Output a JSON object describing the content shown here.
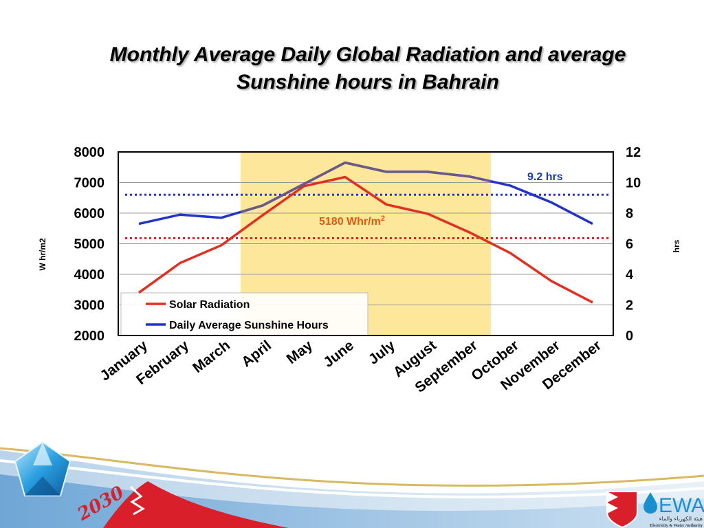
{
  "slide": {
    "title_line1": "Monthly Average Daily Global Radiation and average",
    "title_line2": "Sunshine hours  in Bahrain",
    "logo_text": "EWA",
    "logo_subtitle": "Electricity & Water Authority",
    "logo_arabic": "هيئة الكهرباء والماء",
    "vision_text": "2030"
  },
  "colors": {
    "radiation": "#e03020",
    "sunshine": "#2233cc",
    "highlight": "#fde79a",
    "ref_radiation": "#e02020",
    "ref_sunshine": "#2233cc",
    "annotation_radiation": "#e05a10",
    "annotation_sunshine": "#1a3ab0"
  },
  "chart_data": {
    "type": "line",
    "categories": [
      "January",
      "February",
      "March",
      "April",
      "May",
      "June",
      "July",
      "August",
      "September",
      "October",
      "November",
      "December"
    ],
    "ylabel": "W hr/m2",
    "y2label": "hrs",
    "ylim": [
      2000,
      8000
    ],
    "y2lim": [
      0,
      12
    ],
    "yticks": [
      "8000",
      "7000",
      "6000",
      "5000",
      "4000",
      "3000",
      "2000"
    ],
    "y2ticks": [
      "12",
      "10",
      "8",
      "6",
      "4",
      "2",
      "0"
    ],
    "series": [
      {
        "name": "Solar Radiation",
        "axis": "left",
        "values": [
          3400,
          4370,
          4950,
          5930,
          6880,
          7180,
          6280,
          5980,
          5380,
          4700,
          3780,
          3080
        ]
      },
      {
        "name": "Daily Average Sunshine Hours",
        "axis": "right",
        "values": [
          7.3,
          7.9,
          7.7,
          8.5,
          9.9,
          11.3,
          10.7,
          10.7,
          10.4,
          9.8,
          8.7,
          7.3
        ]
      }
    ],
    "reference_lines": [
      {
        "axis": "left",
        "value": 5180,
        "label": "5180 Whr/m",
        "superscript": "2"
      },
      {
        "axis": "right",
        "value": 9.2,
        "label": "9.2 hrs"
      }
    ],
    "highlight_months": [
      "April",
      "September"
    ],
    "grid": true,
    "legend_position": "bottom-left"
  }
}
